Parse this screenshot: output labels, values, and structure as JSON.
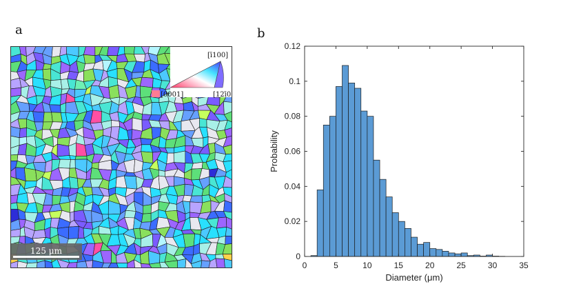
{
  "panel_a": {
    "label": "a",
    "scale_bar": {
      "text": "125 μm"
    },
    "ipf_key": {
      "top": "[ī100]",
      "left": "[0001]",
      "right": "[12ī0]"
    },
    "grain_colors": [
      "#4cc9ff",
      "#8ae05c",
      "#7a5cff",
      "#49e6d4",
      "#b7a4ff",
      "#3b6cff",
      "#a8f0e8",
      "#5ddf7a",
      "#9c66ff",
      "#e8e8f0",
      "#66a0ff",
      "#29e0ff",
      "#c6ff5e",
      "#2d2dd8",
      "#ffd24a",
      "#ff4fa3",
      "#b4f6ff",
      "#6ef0b4"
    ]
  },
  "panel_b": {
    "label": "b"
  },
  "chart_data": {
    "type": "bar",
    "title": "",
    "xlabel": "Diameter  (μm)",
    "ylabel": "Probability",
    "xlim": [
      0,
      35
    ],
    "ylim": [
      0,
      0.12
    ],
    "xticks": [
      0,
      5,
      10,
      15,
      20,
      25,
      30,
      35
    ],
    "yticks": [
      0,
      0.02,
      0.04,
      0.06,
      0.08,
      0.1,
      0.12
    ],
    "ytick_labels": [
      "0",
      "0.02",
      "0.04",
      "0.06",
      "0.08",
      "0.1",
      "0.12"
    ],
    "bin_width": 1,
    "bins": [
      1,
      2,
      3,
      4,
      5,
      6,
      7,
      8,
      9,
      10,
      11,
      12,
      13,
      14,
      15,
      16,
      17,
      18,
      19,
      20,
      21,
      22,
      23,
      24,
      25,
      26,
      27,
      28,
      29,
      30,
      31
    ],
    "values": [
      0.0005,
      0.038,
      0.075,
      0.08,
      0.097,
      0.109,
      0.099,
      0.096,
      0.083,
      0.08,
      0.055,
      0.044,
      0.034,
      0.025,
      0.02,
      0.016,
      0.011,
      0.007,
      0.008,
      0.0045,
      0.004,
      0.003,
      0.002,
      0.0015,
      0.002,
      0.0005,
      0.0008,
      0.0002,
      0.0008,
      0.0002,
      0.0001
    ],
    "bar_color": "#5b9bd5",
    "edge_color": "#1a1a1a"
  }
}
